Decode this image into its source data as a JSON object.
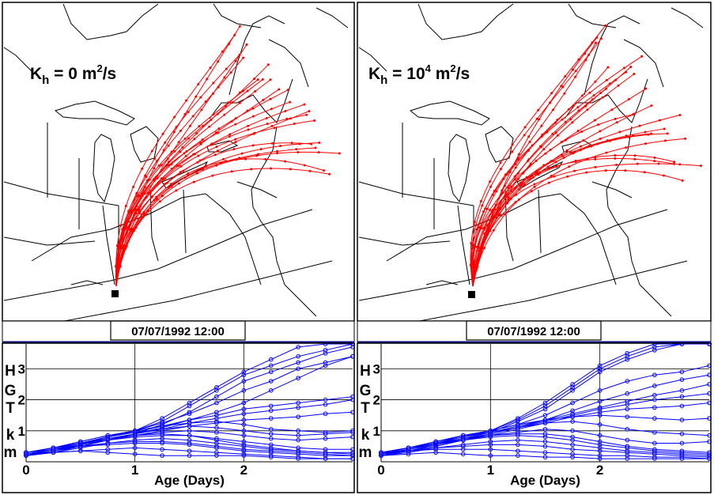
{
  "panels": [
    {
      "id": "left",
      "kh_text": {
        "base": "K",
        "sub": "h",
        "equals": " = 0 m",
        "sup1": "2",
        "suffix": "/s",
        "exp": ""
      },
      "date": "07/07/1992 12:00",
      "source_marker": "black square",
      "trajectory_color": "#ff0000"
    },
    {
      "id": "right",
      "kh_text": {
        "base": "K",
        "sub": "h",
        "equals": " = 10",
        "exp": "4",
        "mid": " m",
        "sup1": "2",
        "suffix": "/s"
      },
      "date": "07/07/1992 12:00",
      "source_marker": "black square",
      "trajectory_color": "#ff0000"
    }
  ],
  "height_axis_letters": [
    "H",
    "G",
    "T",
    "k",
    "m"
  ],
  "colors": {
    "map_lines": "#000000",
    "trajectories": "#ff0000",
    "height_series": "#0000ff",
    "border": "#000000",
    "divider": "#000080"
  },
  "chart_data": [
    {
      "type": "line",
      "title": "",
      "xlabel": "Age (Days)",
      "ylabel": "HGT km",
      "xlim": [
        0,
        3
      ],
      "ylim": [
        0,
        3.8
      ],
      "xticks": [
        0,
        1,
        2
      ],
      "yticks": [
        1,
        2,
        3
      ],
      "grid": true,
      "series": [
        {
          "x": [
            0,
            0.25,
            0.5,
            0.75,
            1,
            1.25,
            1.5,
            1.75,
            2,
            2.25,
            2.5,
            2.75,
            3
          ],
          "y": [
            0.2,
            0.35,
            0.55,
            0.8,
            1.0,
            1.4,
            1.9,
            2.4,
            2.9,
            3.3,
            3.7,
            3.8,
            3.8
          ]
        },
        {
          "x": [
            0,
            0.25,
            0.5,
            0.75,
            1,
            1.25,
            1.5,
            1.75,
            2,
            2.25,
            2.5,
            2.75,
            3
          ],
          "y": [
            0.25,
            0.4,
            0.6,
            0.8,
            1.0,
            1.3,
            1.8,
            2.3,
            2.8,
            3.1,
            3.4,
            3.6,
            3.8
          ]
        },
        {
          "x": [
            0,
            0.25,
            0.5,
            0.75,
            1,
            1.25,
            1.5,
            1.75,
            2,
            2.25,
            2.5,
            2.75,
            3
          ],
          "y": [
            0.2,
            0.35,
            0.5,
            0.7,
            0.9,
            1.2,
            1.6,
            2.1,
            2.6,
            2.9,
            3.2,
            3.5,
            3.7
          ]
        },
        {
          "x": [
            0,
            0.25,
            0.5,
            0.75,
            1,
            1.25,
            1.5,
            1.75,
            2,
            2.25,
            2.5,
            2.75,
            3
          ],
          "y": [
            0.3,
            0.45,
            0.65,
            0.85,
            1.0,
            1.25,
            1.55,
            1.9,
            2.3,
            2.6,
            3.0,
            3.2,
            3.4
          ]
        },
        {
          "x": [
            0,
            0.25,
            0.5,
            0.75,
            1,
            1.25,
            1.5,
            1.75,
            2,
            2.25,
            2.5,
            2.75,
            3
          ],
          "y": [
            0.2,
            0.3,
            0.5,
            0.7,
            0.9,
            1.1,
            1.35,
            1.6,
            1.9,
            2.3,
            2.7,
            3.1,
            3.4
          ]
        },
        {
          "x": [
            0,
            0.25,
            0.5,
            0.75,
            1,
            1.25,
            1.5,
            1.75,
            2,
            2.25,
            2.5,
            2.75,
            3
          ],
          "y": [
            0.25,
            0.4,
            0.6,
            0.8,
            0.95,
            1.15,
            1.35,
            1.5,
            1.7,
            1.8,
            1.9,
            2.0,
            2.1
          ]
        },
        {
          "x": [
            0,
            0.25,
            0.5,
            0.75,
            1,
            1.25,
            1.5,
            1.75,
            2,
            2.25,
            2.5,
            2.75,
            3
          ],
          "y": [
            0.3,
            0.45,
            0.6,
            0.75,
            0.9,
            1.05,
            1.25,
            1.4,
            1.55,
            1.65,
            1.75,
            1.85,
            2.0
          ]
        },
        {
          "x": [
            0,
            0.25,
            0.5,
            0.75,
            1,
            1.25,
            1.5,
            1.75,
            2,
            2.25,
            2.5,
            2.75,
            3
          ],
          "y": [
            0.2,
            0.35,
            0.55,
            0.7,
            0.85,
            1.0,
            1.15,
            1.25,
            1.35,
            1.4,
            1.45,
            1.55,
            1.6
          ]
        },
        {
          "x": [
            0,
            0.25,
            0.5,
            0.75,
            1,
            1.25,
            1.5,
            1.75,
            2,
            2.25,
            2.5,
            2.75,
            3
          ],
          "y": [
            0.25,
            0.4,
            0.6,
            0.8,
            1.0,
            1.15,
            1.25,
            1.3,
            1.2,
            1.05,
            1.0,
            0.95,
            1.0
          ]
        },
        {
          "x": [
            0,
            0.25,
            0.5,
            0.75,
            1,
            1.25,
            1.5,
            1.75,
            2,
            2.25,
            2.5,
            2.75,
            3
          ],
          "y": [
            0.3,
            0.45,
            0.65,
            0.85,
            0.95,
            1.05,
            1.15,
            1.1,
            1.0,
            0.9,
            0.85,
            0.9,
            0.95
          ]
        },
        {
          "x": [
            0,
            0.25,
            0.5,
            0.75,
            1,
            1.25,
            1.5,
            1.75,
            2,
            2.25,
            2.5,
            2.75,
            3
          ],
          "y": [
            0.2,
            0.35,
            0.5,
            0.7,
            0.85,
            0.95,
            1.0,
            0.95,
            0.85,
            0.75,
            0.7,
            0.75,
            0.8
          ]
        },
        {
          "x": [
            0,
            0.25,
            0.5,
            0.75,
            1,
            1.25,
            1.5,
            1.75,
            2,
            2.25,
            2.5,
            2.75,
            3
          ],
          "y": [
            0.25,
            0.4,
            0.55,
            0.75,
            0.85,
            0.9,
            0.85,
            0.75,
            0.65,
            0.55,
            0.45,
            0.4,
            0.4
          ]
        },
        {
          "x": [
            0,
            0.25,
            0.5,
            0.75,
            1,
            1.25,
            1.5,
            1.75,
            2,
            2.25,
            2.5,
            2.75,
            3
          ],
          "y": [
            0.3,
            0.45,
            0.6,
            0.7,
            0.8,
            0.85,
            0.85,
            0.7,
            0.55,
            0.45,
            0.35,
            0.3,
            0.3
          ]
        },
        {
          "x": [
            0,
            0.25,
            0.5,
            0.75,
            1,
            1.25,
            1.5,
            1.75,
            2,
            2.25,
            2.5,
            2.75,
            3
          ],
          "y": [
            0.2,
            0.3,
            0.45,
            0.6,
            0.7,
            0.75,
            0.7,
            0.6,
            0.5,
            0.4,
            0.35,
            0.3,
            0.25
          ]
        },
        {
          "x": [
            0,
            0.25,
            0.5,
            0.75,
            1,
            1.25,
            1.5,
            1.75,
            2,
            2.25,
            2.5,
            2.75,
            3
          ],
          "y": [
            0.25,
            0.35,
            0.5,
            0.6,
            0.65,
            0.65,
            0.6,
            0.5,
            0.4,
            0.35,
            0.3,
            0.25,
            0.2
          ]
        },
        {
          "x": [
            0,
            0.25,
            0.5,
            0.75,
            1,
            1.25,
            1.5,
            1.75,
            2,
            2.25,
            2.5,
            2.75,
            3
          ],
          "y": [
            0.3,
            0.4,
            0.5,
            0.55,
            0.6,
            0.6,
            0.55,
            0.45,
            0.35,
            0.3,
            0.25,
            0.2,
            0.2
          ]
        },
        {
          "x": [
            0,
            0.25,
            0.5,
            0.75,
            1,
            1.25,
            1.5,
            1.75,
            2,
            2.25,
            2.5,
            2.75,
            3
          ],
          "y": [
            0.2,
            0.3,
            0.35,
            0.4,
            0.45,
            0.4,
            0.35,
            0.3,
            0.25,
            0.2,
            0.15,
            0.1,
            0.1
          ]
        },
        {
          "x": [
            0,
            0.25,
            0.5,
            0.75,
            1,
            1.25,
            1.5,
            1.75,
            2,
            2.25,
            2.5,
            2.75,
            3
          ],
          "y": [
            0.25,
            0.3,
            0.35,
            0.3,
            0.25,
            0.2,
            0.2,
            0.2,
            0.2,
            0.15,
            0.1,
            0.1,
            0.1
          ]
        }
      ]
    },
    {
      "type": "line",
      "title": "",
      "xlabel": "Age (Days)",
      "ylabel": "HGT km",
      "xlim": [
        0,
        3
      ],
      "ylim": [
        0,
        3.8
      ],
      "xticks": [
        0,
        1,
        2
      ],
      "yticks": [
        1,
        2,
        3
      ],
      "grid": true,
      "series": [
        {
          "x": [
            0,
            0.25,
            0.5,
            0.75,
            1,
            1.25,
            1.5,
            1.75,
            2,
            2.25,
            2.5,
            2.75,
            3
          ],
          "y": [
            0.2,
            0.4,
            0.6,
            0.85,
            1.0,
            1.4,
            1.9,
            2.5,
            3.1,
            3.5,
            3.8,
            3.8,
            3.8
          ]
        },
        {
          "x": [
            0,
            0.25,
            0.5,
            0.75,
            1,
            1.25,
            1.5,
            1.75,
            2,
            2.25,
            2.5,
            2.75,
            3
          ],
          "y": [
            0.25,
            0.45,
            0.65,
            0.85,
            1.0,
            1.35,
            1.8,
            2.4,
            3.0,
            3.4,
            3.7,
            3.8,
            3.8
          ]
        },
        {
          "x": [
            0,
            0.25,
            0.5,
            0.75,
            1,
            1.25,
            1.5,
            1.75,
            2,
            2.25,
            2.5,
            2.75,
            3
          ],
          "y": [
            0.2,
            0.4,
            0.55,
            0.75,
            0.95,
            1.3,
            1.7,
            2.3,
            2.9,
            3.3,
            3.6,
            3.8,
            3.8
          ]
        },
        {
          "x": [
            0,
            0.25,
            0.5,
            0.75,
            1,
            1.25,
            1.5,
            1.75,
            2,
            2.25,
            2.5,
            2.75,
            3
          ],
          "y": [
            0.3,
            0.45,
            0.65,
            0.85,
            1.0,
            1.2,
            1.5,
            1.9,
            2.3,
            2.6,
            2.8,
            2.9,
            3.1
          ]
        },
        {
          "x": [
            0,
            0.25,
            0.5,
            0.75,
            1,
            1.25,
            1.5,
            1.75,
            2,
            2.25,
            2.5,
            2.75,
            3
          ],
          "y": [
            0.2,
            0.35,
            0.5,
            0.7,
            0.9,
            1.1,
            1.35,
            1.65,
            1.95,
            2.2,
            2.45,
            2.65,
            2.8
          ]
        },
        {
          "x": [
            0,
            0.25,
            0.5,
            0.75,
            1,
            1.25,
            1.5,
            1.75,
            2,
            2.25,
            2.5,
            2.75,
            3
          ],
          "y": [
            0.25,
            0.4,
            0.6,
            0.8,
            0.95,
            1.15,
            1.35,
            1.55,
            1.75,
            1.95,
            2.15,
            2.3,
            2.5
          ]
        },
        {
          "x": [
            0,
            0.25,
            0.5,
            0.75,
            1,
            1.25,
            1.5,
            1.75,
            2,
            2.25,
            2.5,
            2.75,
            3
          ],
          "y": [
            0.3,
            0.45,
            0.6,
            0.75,
            0.9,
            1.1,
            1.3,
            1.5,
            1.7,
            1.85,
            2.0,
            2.1,
            2.2
          ]
        },
        {
          "x": [
            0,
            0.25,
            0.5,
            0.75,
            1,
            1.25,
            1.5,
            1.75,
            2,
            2.25,
            2.5,
            2.75,
            3
          ],
          "y": [
            0.2,
            0.35,
            0.55,
            0.7,
            0.85,
            1.05,
            1.25,
            1.45,
            1.6,
            1.7,
            1.75,
            1.8,
            1.9
          ]
        },
        {
          "x": [
            0,
            0.25,
            0.5,
            0.75,
            1,
            1.25,
            1.5,
            1.75,
            2,
            2.25,
            2.5,
            2.75,
            3
          ],
          "y": [
            0.25,
            0.4,
            0.6,
            0.8,
            1.0,
            1.2,
            1.35,
            1.45,
            1.5,
            1.45,
            1.4,
            1.35,
            1.4
          ]
        },
        {
          "x": [
            0,
            0.25,
            0.5,
            0.75,
            1,
            1.25,
            1.5,
            1.75,
            2,
            2.25,
            2.5,
            2.75,
            3
          ],
          "y": [
            0.3,
            0.45,
            0.65,
            0.85,
            0.95,
            1.1,
            1.25,
            1.3,
            1.2,
            1.05,
            0.95,
            0.9,
            0.85
          ]
        },
        {
          "x": [
            0,
            0.25,
            0.5,
            0.75,
            1,
            1.25,
            1.5,
            1.75,
            2,
            2.25,
            2.5,
            2.75,
            3
          ],
          "y": [
            0.2,
            0.35,
            0.5,
            0.7,
            0.85,
            0.95,
            1.05,
            1.0,
            0.85,
            0.7,
            0.6,
            0.6,
            0.65
          ]
        },
        {
          "x": [
            0,
            0.25,
            0.5,
            0.75,
            1,
            1.25,
            1.5,
            1.75,
            2,
            2.25,
            2.5,
            2.75,
            3
          ],
          "y": [
            0.25,
            0.4,
            0.55,
            0.75,
            0.85,
            0.9,
            0.9,
            0.8,
            0.65,
            0.5,
            0.4,
            0.35,
            0.3
          ]
        },
        {
          "x": [
            0,
            0.25,
            0.5,
            0.75,
            1,
            1.25,
            1.5,
            1.75,
            2,
            2.25,
            2.5,
            2.75,
            3
          ],
          "y": [
            0.3,
            0.45,
            0.6,
            0.7,
            0.8,
            0.85,
            0.8,
            0.7,
            0.55,
            0.45,
            0.35,
            0.3,
            0.25
          ]
        },
        {
          "x": [
            0,
            0.25,
            0.5,
            0.75,
            1,
            1.25,
            1.5,
            1.75,
            2,
            2.25,
            2.5,
            2.75,
            3
          ],
          "y": [
            0.2,
            0.3,
            0.45,
            0.55,
            0.65,
            0.7,
            0.65,
            0.55,
            0.45,
            0.35,
            0.3,
            0.25,
            0.2
          ]
        },
        {
          "x": [
            0,
            0.25,
            0.5,
            0.75,
            1,
            1.25,
            1.5,
            1.75,
            2,
            2.25,
            2.5,
            2.75,
            3
          ],
          "y": [
            0.25,
            0.35,
            0.45,
            0.5,
            0.55,
            0.55,
            0.5,
            0.4,
            0.35,
            0.3,
            0.25,
            0.2,
            0.15
          ]
        },
        {
          "x": [
            0,
            0.25,
            0.5,
            0.75,
            1,
            1.25,
            1.5,
            1.75,
            2,
            2.25,
            2.5,
            2.75,
            3
          ],
          "y": [
            0.3,
            0.35,
            0.4,
            0.4,
            0.4,
            0.35,
            0.3,
            0.25,
            0.2,
            0.2,
            0.15,
            0.15,
            0.1
          ]
        },
        {
          "x": [
            0,
            0.25,
            0.5,
            0.75,
            1,
            1.25,
            1.5,
            1.75,
            2,
            2.25,
            2.5,
            2.75,
            3
          ],
          "y": [
            0.2,
            0.25,
            0.3,
            0.25,
            0.2,
            0.2,
            0.15,
            0.15,
            0.1,
            0.1,
            0.1,
            0.1,
            0.1
          ]
        }
      ]
    }
  ]
}
